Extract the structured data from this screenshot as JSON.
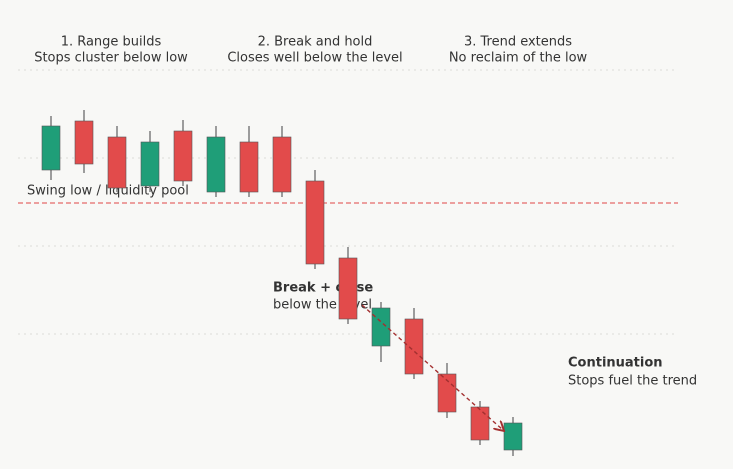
{
  "chart_data": {
    "type": "candlestick",
    "annotations": [
      [
        "1. Range builds",
        "Stops cluster below low"
      ],
      [
        "2. Break and hold",
        "Closes well below the level"
      ],
      [
        "3. Trend extends",
        "No reclaim of the low"
      ],
      [
        "Break + close",
        "below the level"
      ],
      [
        "Continuation",
        "Stops fuel the trend"
      ]
    ],
    "categories": [
      null,
      null,
      null,
      null,
      null,
      null,
      null,
      null,
      null,
      null,
      null,
      null,
      null,
      null,
      null
    ],
    "open": [
      299,
      348,
      332,
      283,
      338,
      277,
      327,
      332,
      288,
      211,
      123,
      150,
      95,
      62,
      19
    ],
    "close": [
      343,
      305,
      281,
      327,
      288,
      332,
      277,
      277,
      205,
      150,
      161,
      95,
      57,
      29,
      46
    ],
    "high": [
      353,
      359,
      343,
      338,
      349,
      343,
      343,
      343,
      299,
      222,
      167,
      161,
      106,
      68,
      52
    ],
    "low": [
      289,
      296,
      277,
      277,
      283,
      272,
      272,
      272,
      200,
      145,
      107,
      90,
      51,
      24,
      13
    ],
    "up_color": "#1f9e78",
    "down_color": "#e24b4b",
    "level": {
      "value": 266,
      "label": "Swing low / liquidity pool",
      "color": "#e46a6a"
    },
    "ylim": [
      0,
      469
    ],
    "yticks": [
      135,
      223,
      311,
      399
    ],
    "grid": true
  }
}
